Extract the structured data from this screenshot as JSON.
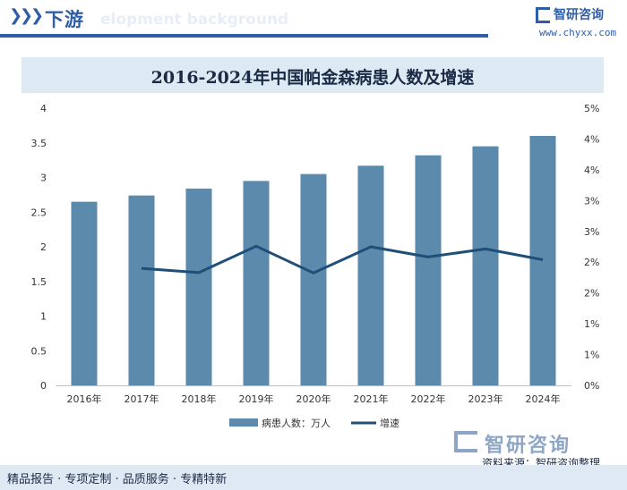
{
  "header": {
    "chevrons": "❯",
    "title": "下游",
    "ghost_text": "elopment background",
    "logo_name": "智研咨询",
    "logo_url": "www.chyxx.com"
  },
  "chart_title": "2016-2024年中国帕金森病患人数及增速",
  "chart_data": {
    "type": "bar",
    "title": "2016-2024年中国帕金森病患人数及增速",
    "categories": [
      "2016年",
      "2017年",
      "2018年",
      "2019年",
      "2020年",
      "2021年",
      "2022年",
      "2023年",
      "2024年"
    ],
    "series": [
      {
        "name": "病患人数：万人",
        "type": "bar",
        "axis": "left",
        "values": [
          2.65,
          2.74,
          2.84,
          2.95,
          3.05,
          3.17,
          3.32,
          3.45,
          3.6
        ]
      },
      {
        "name": "增速",
        "type": "line",
        "axis": "right",
        "values": [
          null,
          3.8,
          3.66,
          4.52,
          3.65,
          4.5,
          4.17,
          4.43,
          4.08
        ]
      }
    ],
    "left_axis": {
      "range": [
        0,
        4
      ],
      "ticks": [
        "0",
        "0.5",
        "1",
        "1.5",
        "2",
        "2.5",
        "3",
        "3.5",
        "4"
      ]
    },
    "right_axis": {
      "range": [
        0,
        9
      ],
      "unit": "%",
      "ticks": [
        "0%",
        "1%",
        "1%",
        "2%",
        "2%",
        "3%",
        "3%",
        "4%",
        "4%",
        "5%"
      ]
    },
    "legend_position": "bottom",
    "grid": false,
    "colors": {
      "bar": "#5b8aac",
      "line": "#1f4e79"
    }
  },
  "footer": {
    "left_text": "精品报告 · 专项定制 · 品质服务 · 专精特新",
    "source_logo": "智研咨询",
    "source_text": "资料来源：智研咨询整理"
  }
}
